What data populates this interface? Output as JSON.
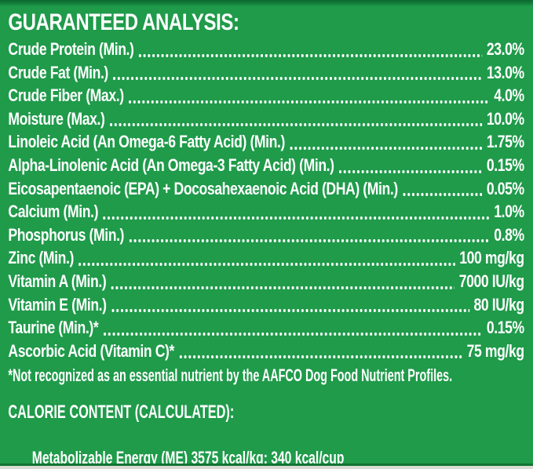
{
  "colors": {
    "background": "#1f9b4a",
    "top_edge": "#0c6a30",
    "bottom_edge": "#117434",
    "bottom_border": "#d8dcd3",
    "text": "#ffffff"
  },
  "header": {
    "title": "GUARANTEED ANALYSIS:"
  },
  "analysis": {
    "rows": [
      {
        "label": "Crude Protein (Min.)",
        "value": "23.0%"
      },
      {
        "label": "Crude Fat (Min.)",
        "value": "13.0%"
      },
      {
        "label": "Crude Fiber (Max.)",
        "value": "4.0%"
      },
      {
        "label": "Moisture (Max.)",
        "value": "10.0%"
      },
      {
        "label": "Linoleic Acid (An Omega-6 Fatty Acid) (Min.)",
        "value": "1.75%"
      },
      {
        "label": "Alpha-Linolenic Acid (An Omega-3 Fatty Acid) (Min.)",
        "value": "0.15%"
      },
      {
        "label": "Eicosapentaenoic (EPA) + Docosahexaenoic Acid (DHA) (Min.)",
        "value": "0.05%"
      },
      {
        "label": "Calcium (Min.)",
        "value": "1.0%"
      },
      {
        "label": "Phosphorus (Min.)",
        "value": "0.8%"
      },
      {
        "label": "Zinc (Min.)",
        "value": "100 mg/kg"
      },
      {
        "label": "Vitamin A (Min.)",
        "value": "7000 IU/kg"
      },
      {
        "label": "Vitamin E (Min.)",
        "value": "80 IU/kg"
      },
      {
        "label": "Taurine (Min.)*",
        "value": "0.15%"
      },
      {
        "label": "Ascorbic Acid (Vitamin C)*",
        "value": "75 mg/kg"
      }
    ]
  },
  "footnote": "*Not recognized as an essential nutrient by the AAFCO Dog Food Nutrient Profiles.",
  "calorie": {
    "title": "CALORIE CONTENT (CALCULATED):",
    "line": "Metabolizable Energy (ME) 3575 kcal/kg;  340 kcal/cup"
  }
}
